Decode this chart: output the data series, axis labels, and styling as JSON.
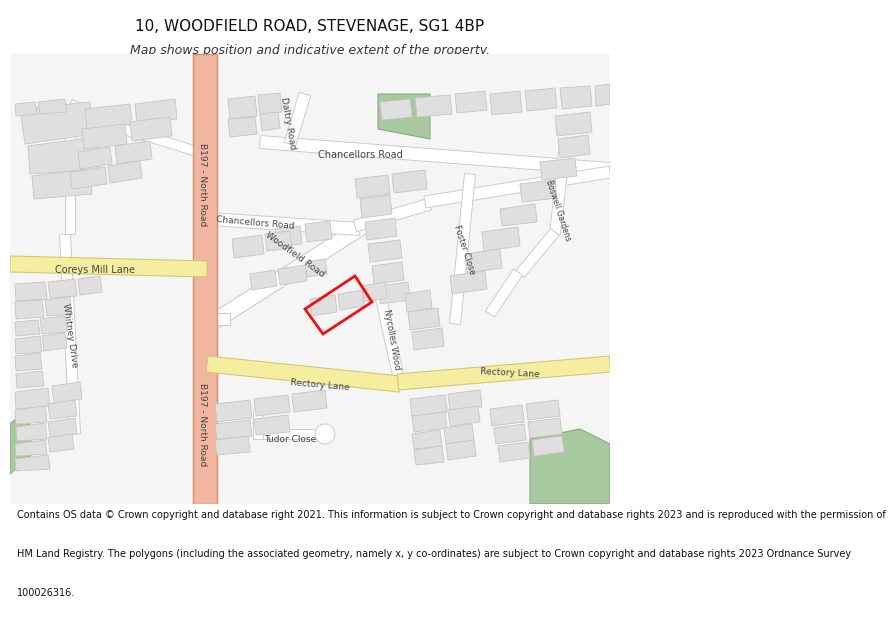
{
  "title": "10, WOODFIELD ROAD, STEVENAGE, SG1 4BP",
  "subtitle": "Map shows position and indicative extent of the property.",
  "footer_lines": [
    "Contains OS data © Crown copyright and database right 2021. This information is subject to Crown copyright and database rights 2023 and is reproduced with the permission of",
    "HM Land Registry. The polygons (including the associated geometry, namely x, y co-ordinates) are subject to Crown copyright and database rights 2023 Ordnance Survey",
    "100026316."
  ],
  "map_bg": "#f5f5f5",
  "red_road_fill": "#f2b5a0",
  "red_road_edge": "#d4906e",
  "yellow_road_fill": "#f5eea0",
  "yellow_road_edge": "#d4c870",
  "white_road_fill": "#ffffff",
  "white_road_edge": "#cccccc",
  "building_fill": "#e0dede",
  "building_edge": "#c8c4c4",
  "green_fill": "#a8c8a0",
  "green_edge": "#88aa80",
  "salmon_fill": "#f2c0b0",
  "property_edge": "#ee1111",
  "text_dark": "#444444",
  "title_fontsize": 11,
  "subtitle_fontsize": 9,
  "footer_fontsize": 7
}
